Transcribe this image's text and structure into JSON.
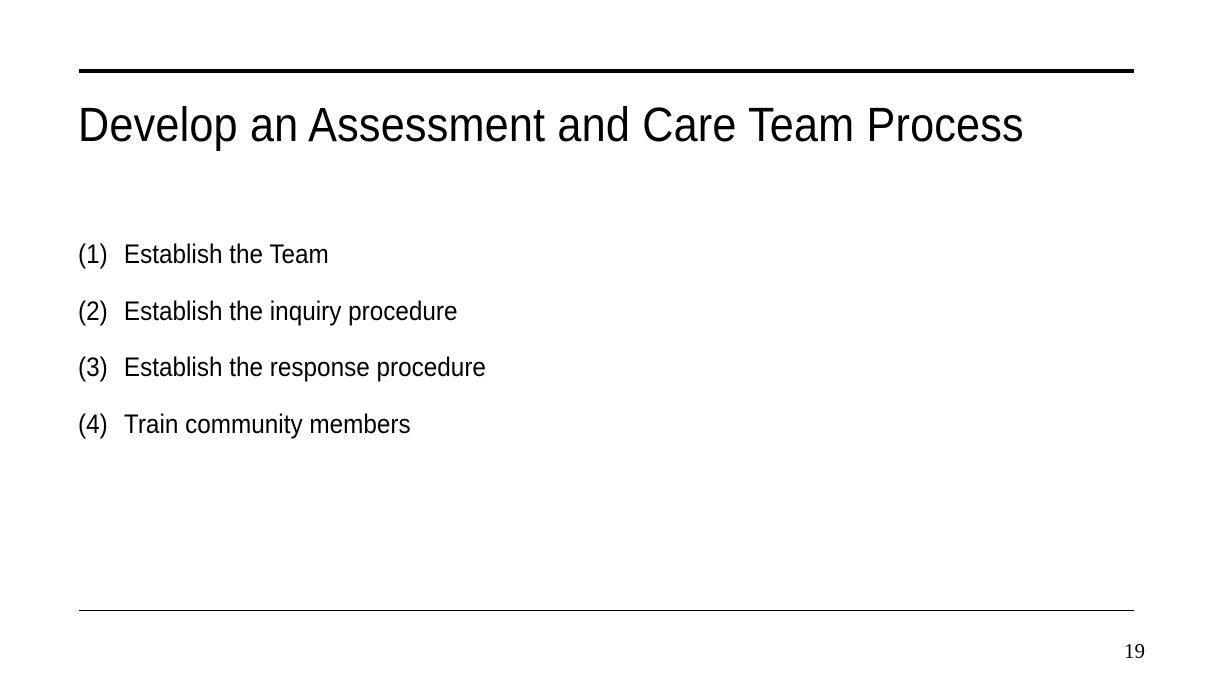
{
  "slide": {
    "title": "Develop an Assessment and Care Team Process",
    "steps": [
      {
        "number": "(1)",
        "text": "Establish the Team"
      },
      {
        "number": "(2)",
        "text": "Establish the inquiry procedure"
      },
      {
        "number": "(3)",
        "text": "Establish the response procedure"
      },
      {
        "number": "(4)",
        "text": "Train community members"
      }
    ],
    "page_number": "19"
  },
  "colors": {
    "background": "#ffffff",
    "text": "#000000",
    "rules": "#000000"
  }
}
